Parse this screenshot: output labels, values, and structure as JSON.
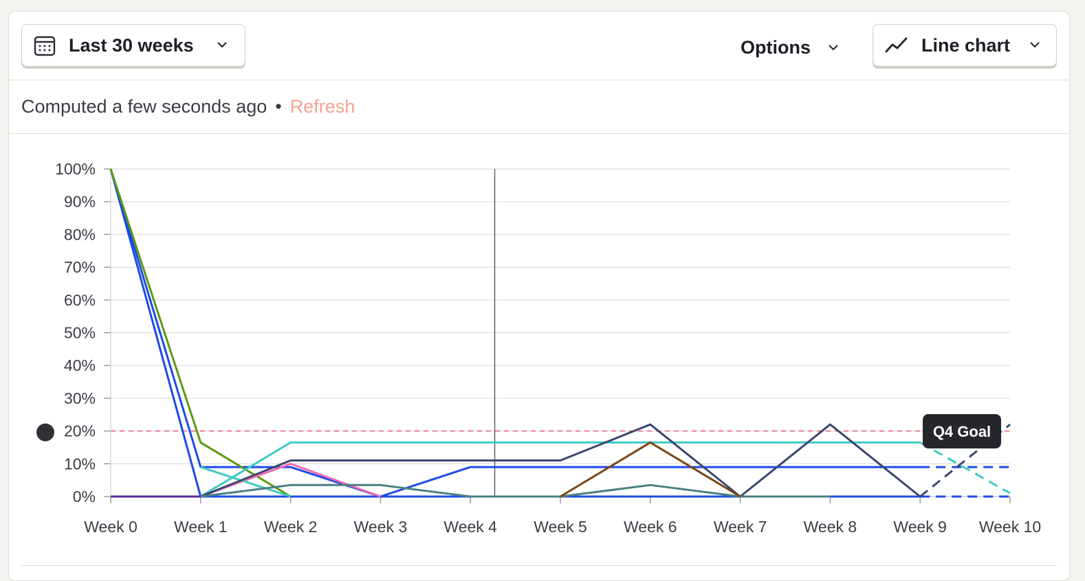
{
  "toolbar": {
    "date_range_label": "Last 30 weeks",
    "options_label": "Options",
    "chart_type_label": "Line chart"
  },
  "status": {
    "computed_text": "Computed a few seconds ago",
    "separator": "•",
    "refresh_label": "Refresh"
  },
  "icons": {
    "date": "calendar-icon",
    "chart_type": "line-chart-icon",
    "chevron": "chevron-down-icon"
  },
  "colors": {
    "accent_refresh": "#f4a28c",
    "goal_line": "#f05a78",
    "crosshair": "#5a6070"
  },
  "chart_data": {
    "type": "line",
    "x": [
      "Week 0",
      "Week 1",
      "Week 2",
      "Week 3",
      "Week 4",
      "Week 5",
      "Week 6",
      "Week 7",
      "Week 8",
      "Week 9",
      "Week 10"
    ],
    "ylim": [
      0,
      100
    ],
    "yticks": [
      "0%",
      "10%",
      "20%",
      "30%",
      "40%",
      "50%",
      "60%",
      "70%",
      "80%",
      "90%",
      "100%"
    ],
    "grid": true,
    "crosshair_x": 4.27,
    "goal": {
      "label": "Q4 Goal",
      "value": 20,
      "color": "#f05a78"
    },
    "series": [
      {
        "color": "#1b4ae8",
        "values": [
          100,
          9,
          9,
          0,
          9,
          9,
          9,
          9,
          9,
          9,
          9
        ],
        "dashed_from": 9
      },
      {
        "color": "#1b4ae8",
        "values": [
          100,
          0,
          0,
          0,
          0,
          0,
          0,
          0,
          0,
          0,
          0
        ],
        "dashed_from": 9
      },
      {
        "color": "#5b9a10",
        "values": [
          100,
          16.5,
          0,
          null,
          null,
          null,
          null,
          null,
          null,
          null,
          null
        ]
      },
      {
        "color": "#f06bb0",
        "values": [
          0,
          0,
          10,
          0,
          null,
          null,
          null,
          null,
          null,
          null,
          null
        ]
      },
      {
        "color": "#3ec9c0",
        "values": [
          0,
          0,
          16.5,
          16.5,
          16.5,
          16.5,
          16.5,
          16.5,
          16.5,
          16.5,
          1
        ],
        "dashed_from": 9
      },
      {
        "color": "#3ec9c0",
        "values": [
          null,
          9,
          0,
          null,
          null,
          null,
          null,
          null,
          null,
          null,
          null
        ]
      },
      {
        "color": "#3a4670",
        "values": [
          0,
          0,
          11,
          11,
          11,
          11,
          22,
          0,
          22,
          0,
          22
        ],
        "dashed_from": 9
      },
      {
        "color": "#4b7f84",
        "values": [
          0,
          0,
          3.5,
          3.5,
          0,
          0,
          3.5,
          0,
          0,
          null,
          null
        ]
      },
      {
        "color": "#7a4514",
        "values": [
          null,
          null,
          null,
          null,
          null,
          0,
          16.5,
          0,
          null,
          null,
          null
        ]
      },
      {
        "color": "#5a2aa0",
        "values": [
          0,
          0,
          null,
          null,
          null,
          null,
          null,
          null,
          null,
          null,
          null
        ]
      }
    ]
  }
}
